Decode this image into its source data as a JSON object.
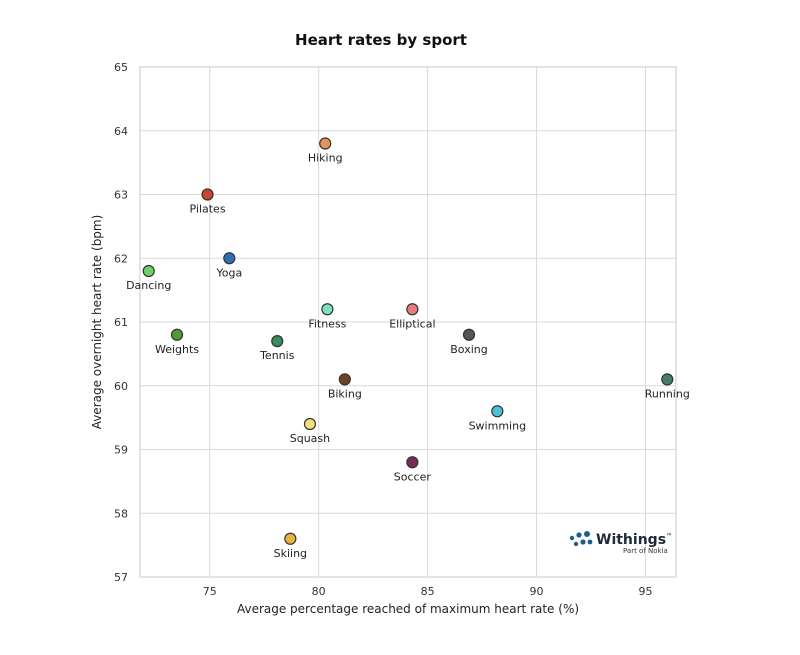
{
  "chart_data": {
    "type": "scatter",
    "title": "Heart rates by sport",
    "xlabel": "Average percentage reached of maximum heart rate (%)",
    "ylabel": "Average overnight heart rate (bpm)",
    "xlim": [
      71.8,
      96.4
    ],
    "ylim": [
      57,
      65
    ],
    "xticks": [
      75,
      80,
      85,
      90,
      95
    ],
    "yticks": [
      57,
      58,
      59,
      60,
      61,
      62,
      63,
      64,
      65
    ],
    "grid": true,
    "points": [
      {
        "label": "Hiking",
        "x": 80.3,
        "y": 63.8,
        "color": "#e8955a"
      },
      {
        "label": "Pilates",
        "x": 74.9,
        "y": 63.0,
        "color": "#c8462c"
      },
      {
        "label": "Yoga",
        "x": 75.9,
        "y": 62.0,
        "color": "#2e6fb0"
      },
      {
        "label": "Dancing",
        "x": 72.2,
        "y": 61.8,
        "color": "#6fcf6a"
      },
      {
        "label": "Fitness",
        "x": 80.4,
        "y": 61.2,
        "color": "#7fe0c0"
      },
      {
        "label": "Elliptical",
        "x": 84.3,
        "y": 61.2,
        "color": "#e87a7a"
      },
      {
        "label": "Weights",
        "x": 73.5,
        "y": 60.8,
        "color": "#4f9a3a"
      },
      {
        "label": "Boxing",
        "x": 86.9,
        "y": 60.8,
        "color": "#555555"
      },
      {
        "label": "Tennis",
        "x": 78.1,
        "y": 60.7,
        "color": "#3a8a5a"
      },
      {
        "label": "Biking",
        "x": 81.2,
        "y": 60.1,
        "color": "#6a4424"
      },
      {
        "label": "Running",
        "x": 96.0,
        "y": 60.1,
        "color": "#4a7a6a"
      },
      {
        "label": "Swimming",
        "x": 88.2,
        "y": 59.6,
        "color": "#4ec0d8"
      },
      {
        "label": "Squash",
        "x": 79.6,
        "y": 59.4,
        "color": "#f2e07a"
      },
      {
        "label": "Soccer",
        "x": 84.3,
        "y": 58.8,
        "color": "#7a2a5a"
      },
      {
        "label": "Skiing",
        "x": 78.7,
        "y": 57.6,
        "color": "#e8b440"
      }
    ]
  },
  "branding": {
    "name": "Withings",
    "tm": "™",
    "sub": "Part of Nokia",
    "color": "#1d5f8a"
  }
}
